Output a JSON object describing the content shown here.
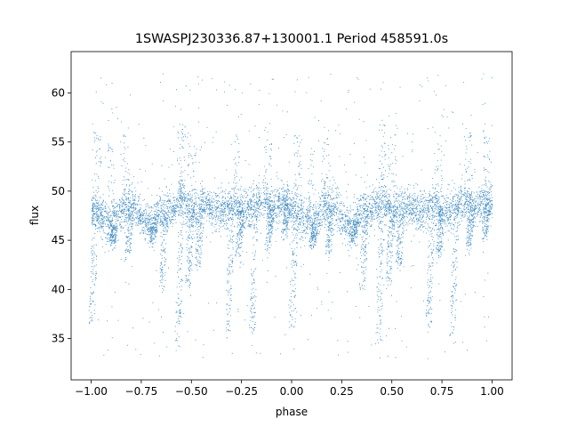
{
  "chart_data": {
    "type": "scatter",
    "title": "1SWASPJ230336.87+130001.1 Period 458591.0s",
    "xlabel": "phase",
    "ylabel": "flux",
    "xlim": [
      -1.1,
      1.1
    ],
    "ylim": [
      30.8,
      64.2
    ],
    "x_ticks": [
      -1.0,
      -0.75,
      -0.5,
      -0.25,
      0.0,
      0.25,
      0.5,
      0.75,
      1.0
    ],
    "x_tick_labels": [
      "−1.00",
      "−0.75",
      "−0.50",
      "−0.25",
      "0.00",
      "0.25",
      "0.50",
      "0.75",
      "1.00"
    ],
    "y_ticks": [
      35,
      40,
      45,
      50,
      55,
      60
    ],
    "y_tick_labels": [
      "35",
      "40",
      "45",
      "50",
      "55",
      "60"
    ],
    "grid": false,
    "point_color": "#1f77b4",
    "series": [
      {
        "values_description_baseline": [
          [
            -1.0,
            48.5
          ],
          [
            -0.95,
            47.5
          ],
          [
            -0.9,
            46.5
          ],
          [
            -0.85,
            48.0
          ],
          [
            -0.8,
            48.8
          ],
          [
            -0.75,
            47.2
          ],
          [
            -0.7,
            46.8
          ],
          [
            -0.65,
            48.2
          ],
          [
            -0.6,
            48.0
          ],
          [
            -0.55,
            49.5
          ],
          [
            -0.5,
            47.5
          ],
          [
            -0.45,
            48.7
          ],
          [
            -0.4,
            48.2
          ],
          [
            -0.35,
            47.8
          ],
          [
            -0.3,
            48.6
          ],
          [
            -0.25,
            47.8
          ],
          [
            -0.2,
            48.4
          ],
          [
            -0.15,
            48.8
          ],
          [
            -0.1,
            48.2
          ],
          [
            -0.05,
            49.0
          ],
          [
            0.0,
            48.5
          ],
          [
            0.05,
            47.5
          ],
          [
            0.1,
            46.5
          ],
          [
            0.15,
            48.0
          ],
          [
            0.2,
            48.8
          ],
          [
            0.25,
            47.2
          ],
          [
            0.3,
            46.8
          ],
          [
            0.35,
            48.2
          ],
          [
            0.4,
            48.0
          ],
          [
            0.45,
            49.5
          ],
          [
            0.5,
            47.5
          ],
          [
            0.55,
            48.7
          ],
          [
            0.6,
            48.2
          ],
          [
            0.65,
            47.8
          ],
          [
            0.7,
            48.6
          ],
          [
            0.75,
            47.8
          ],
          [
            0.8,
            48.4
          ],
          [
            0.85,
            48.8
          ],
          [
            0.9,
            48.2
          ],
          [
            0.95,
            49.0
          ],
          [
            1.0,
            48.5
          ]
        ],
        "dips": [
          [
            -1.0,
            36.5
          ],
          [
            -0.9,
            44.5
          ],
          [
            -0.82,
            43.5
          ],
          [
            -0.7,
            45.0
          ],
          [
            -0.65,
            40.0
          ],
          [
            -0.57,
            34.5
          ],
          [
            -0.52,
            40.5
          ],
          [
            -0.47,
            42.5
          ],
          [
            -0.32,
            35.5
          ],
          [
            -0.27,
            43.5
          ],
          [
            -0.2,
            35.5
          ],
          [
            -0.12,
            44.0
          ],
          [
            -0.04,
            45.5
          ],
          [
            0.0,
            36.5
          ],
          [
            0.1,
            44.5
          ],
          [
            0.18,
            43.5
          ],
          [
            0.3,
            45.0
          ],
          [
            0.35,
            40.0
          ],
          [
            0.43,
            34.5
          ],
          [
            0.48,
            40.5
          ],
          [
            0.53,
            42.5
          ],
          [
            0.68,
            35.5
          ],
          [
            0.73,
            43.5
          ],
          [
            0.8,
            35.5
          ],
          [
            0.88,
            44.0
          ],
          [
            0.96,
            45.5
          ]
        ]
      }
    ]
  }
}
